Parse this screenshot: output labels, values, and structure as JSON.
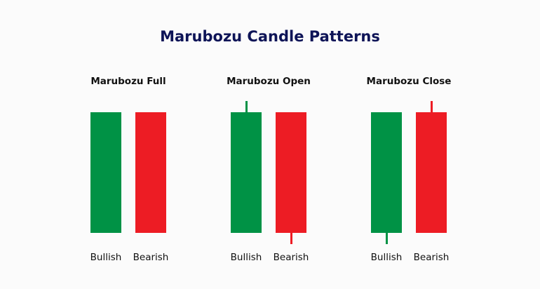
{
  "title": "Marubozu Candle Patterns",
  "colors": {
    "bullish": "#009245",
    "bearish": "#ED1C24",
    "title": "#0e1457"
  },
  "groups": [
    {
      "title": "Marubozu Full",
      "bullish_label": "Bullish",
      "bearish_label": "Bearish",
      "bullish": {
        "upper_wick": false,
        "lower_wick": false
      },
      "bearish": {
        "upper_wick": false,
        "lower_wick": false
      }
    },
    {
      "title": "Marubozu Open",
      "bullish_label": "Bullish",
      "bearish_label": "Bearish",
      "bullish": {
        "upper_wick": true,
        "lower_wick": false
      },
      "bearish": {
        "upper_wick": false,
        "lower_wick": true
      }
    },
    {
      "title": "Marubozu Close",
      "bullish_label": "Bullish",
      "bearish_label": "Bearish",
      "bullish": {
        "upper_wick": false,
        "lower_wick": true
      },
      "bearish": {
        "upper_wick": true,
        "lower_wick": false
      }
    }
  ]
}
